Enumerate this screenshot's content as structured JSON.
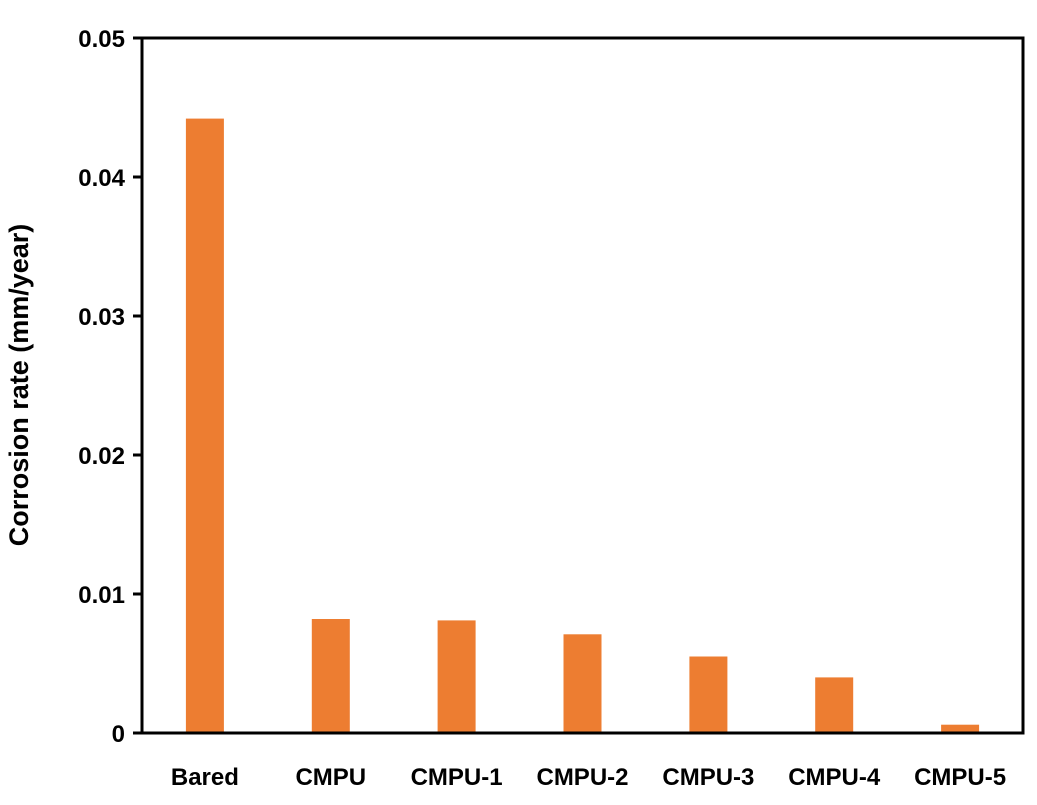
{
  "chart_data": {
    "type": "bar",
    "title": "",
    "xlabel": "",
    "ylabel": "Corrosion rate (mm/year)",
    "categories": [
      "Bared",
      "CMPU",
      "CMPU-1",
      "CMPU-2",
      "CMPU-3",
      "CMPU-4",
      "CMPU-5"
    ],
    "values": [
      0.0442,
      0.0082,
      0.0081,
      0.0071,
      0.0055,
      0.004,
      0.0006
    ],
    "ylim": [
      0,
      0.05
    ],
    "yticks": [
      0,
      0.01,
      0.02,
      0.03,
      0.04,
      0.05
    ],
    "ytick_labels": [
      "0",
      "0.01",
      "0.02",
      "0.03",
      "0.04",
      "0.05"
    ],
    "grid": false,
    "legend": "none",
    "bar_color": "#ED7D31"
  }
}
